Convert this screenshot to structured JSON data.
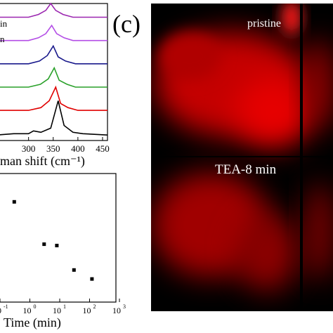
{
  "chart_data": [
    {
      "type": "line",
      "panel": "raman",
      "xlabel": "man shift (cm⁻¹)",
      "ylabel": "",
      "xlim": [
        235,
        460
      ],
      "x_ticks": [
        300,
        350,
        400,
        450
      ],
      "x_tick_labels": [
        "300",
        "350",
        "400",
        "450"
      ],
      "legend_fragments": [
        "in",
        "n"
      ],
      "legend_placement": "top-left (cropped)",
      "grid": false,
      "series": [
        {
          "color": "#9b27b0",
          "peak_x": 345,
          "offset": 0.9,
          "values": [
            [
              235,
              0.0
            ],
            [
              270,
              0.0
            ],
            [
              300,
              0.0
            ],
            [
              320,
              0.02
            ],
            [
              335,
              0.05
            ],
            [
              345,
              0.1
            ],
            [
              355,
              0.05
            ],
            [
              370,
              0.02
            ],
            [
              390,
              0.0
            ],
            [
              460,
              0.0
            ]
          ]
        },
        {
          "color": "#b34de6",
          "peak_x": 347,
          "offset": 0.73,
          "values": [
            [
              235,
              0.0
            ],
            [
              270,
              0.0
            ],
            [
              300,
              0.0
            ],
            [
              320,
              0.02
            ],
            [
              335,
              0.05
            ],
            [
              347,
              0.11
            ],
            [
              357,
              0.05
            ],
            [
              372,
              0.02
            ],
            [
              390,
              0.0
            ],
            [
              460,
              0.0
            ]
          ]
        },
        {
          "color": "#1a1a8c",
          "peak_x": 350,
          "offset": 0.56,
          "values": [
            [
              235,
              0.0
            ],
            [
              270,
              0.0
            ],
            [
              300,
              0.0
            ],
            [
              322,
              0.02
            ],
            [
              338,
              0.06
            ],
            [
              350,
              0.13
            ],
            [
              360,
              0.05
            ],
            [
              375,
              0.02
            ],
            [
              395,
              0.0
            ],
            [
              460,
              0.0
            ]
          ]
        },
        {
          "color": "#2aa12a",
          "peak_x": 352,
          "offset": 0.39,
          "values": [
            [
              235,
              0.0
            ],
            [
              270,
              0.0
            ],
            [
              300,
              0.0
            ],
            [
              324,
              0.02
            ],
            [
              340,
              0.06
            ],
            [
              352,
              0.14
            ],
            [
              362,
              0.05
            ],
            [
              378,
              0.02
            ],
            [
              395,
              0.0
            ],
            [
              460,
              0.0
            ]
          ]
        },
        {
          "color": "#e00000",
          "peak_x": 355,
          "offset": 0.22,
          "values": [
            [
              235,
              0.0
            ],
            [
              270,
              0.0
            ],
            [
              300,
              0.0
            ],
            [
              325,
              0.02
            ],
            [
              342,
              0.07
            ],
            [
              355,
              0.17
            ],
            [
              365,
              0.05
            ],
            [
              380,
              0.02
            ],
            [
              400,
              0.0
            ],
            [
              460,
              0.0
            ]
          ]
        },
        {
          "color": "#000000",
          "peak_x": 360,
          "offset": 0.04,
          "values": [
            [
              235,
              0.0
            ],
            [
              270,
              0.01
            ],
            [
              300,
              0.01
            ],
            [
              310,
              0.03
            ],
            [
              325,
              0.02
            ],
            [
              345,
              0.05
            ],
            [
              360,
              0.25
            ],
            [
              372,
              0.07
            ],
            [
              390,
              0.02
            ],
            [
              410,
              0.01
            ],
            [
              460,
              0.0
            ]
          ]
        }
      ]
    },
    {
      "type": "scatter",
      "panel": "time",
      "xlabel": "Time (min)",
      "x_scale": "log",
      "xlim": [
        -1,
        3
      ],
      "x_tick_exponents": [
        "-1",
        "0",
        "1",
        "2",
        "3"
      ],
      "x_tick_base": "10",
      "grid": false,
      "y_range": [
        0,
        1
      ],
      "points": [
        {
          "x": 0.3,
          "y": 0.78
        },
        {
          "x": 3,
          "y": 0.45
        },
        {
          "x": 8,
          "y": 0.44
        },
        {
          "x": 30,
          "y": 0.25
        },
        {
          "x": 120,
          "y": 0.18
        }
      ]
    }
  ],
  "panel_label": "(c)",
  "image_labels": {
    "top": "pristine",
    "bottom": "TEA-8 min"
  },
  "colors": {
    "glow": "#e60000",
    "background": "#000000"
  }
}
